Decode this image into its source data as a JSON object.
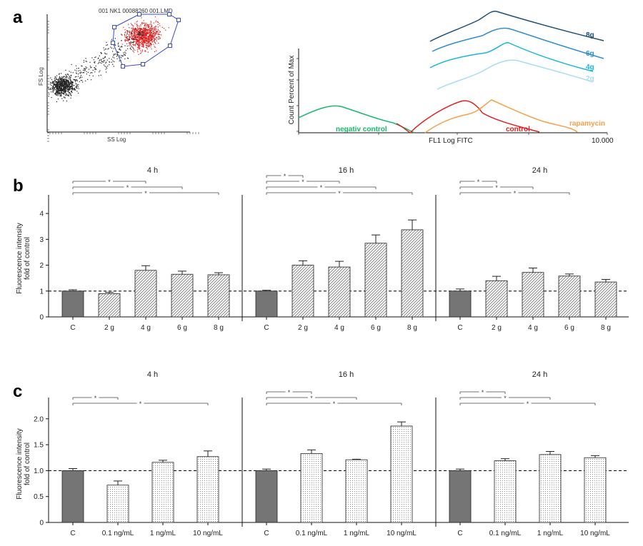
{
  "panel_labels": {
    "a": "a",
    "b": "b",
    "c": "c"
  },
  "chart_data": [
    {
      "id": "a1",
      "type": "scatter",
      "title": "001 NK1 00088260 001.LMD",
      "xlabel": "SS Log",
      "ylabel": "FS Log",
      "gate_label": "A1",
      "colors": {
        "gated": "#e02020",
        "ungated": "#222222",
        "gate": "#3a49d0"
      }
    },
    {
      "id": "a2",
      "type": "line",
      "xlabel": "FL1 Log FITC",
      "ylabel": "Count Percent of Max",
      "x_max_label": "10.000",
      "series": [
        {
          "name": "negativ control",
          "color": "#19b86a"
        },
        {
          "name": "control",
          "color": "#e02020"
        },
        {
          "name": "rapamycin",
          "color": "#f5a04a"
        },
        {
          "name": "2g",
          "color": "#a8dcef"
        },
        {
          "name": "4g",
          "color": "#18b6dc"
        },
        {
          "name": "6g",
          "color": "#2d8fd0"
        },
        {
          "name": "8g",
          "color": "#1e4f7a"
        }
      ]
    },
    {
      "id": "b",
      "type": "bar",
      "ylabel_lines": [
        "Fluorescence intensity",
        "fold of control"
      ],
      "ylim": [
        0,
        4.5
      ],
      "yticks": [
        "0",
        "1",
        "2",
        "3",
        "4"
      ],
      "categories": [
        "C",
        "2 g",
        "4 g",
        "6 g",
        "8 g"
      ],
      "star": "*",
      "groups": [
        {
          "name": "4 h",
          "values": [
            1.0,
            0.9,
            1.8,
            1.65,
            1.63
          ],
          "errors": [
            0.05,
            0.05,
            0.18,
            0.12,
            0.08
          ],
          "significance": [
            [
              0,
              2
            ],
            [
              0,
              3
            ],
            [
              0,
              4
            ]
          ]
        },
        {
          "name": "16 h",
          "values": [
            1.0,
            2.0,
            1.93,
            2.85,
            3.37
          ],
          "errors": [
            0.03,
            0.17,
            0.22,
            0.32,
            0.38
          ],
          "significance": [
            [
              0,
              1
            ],
            [
              0,
              2
            ],
            [
              0,
              3
            ],
            [
              0,
              4
            ]
          ]
        },
        {
          "name": "24 h",
          "values": [
            1.0,
            1.4,
            1.72,
            1.58,
            1.35
          ],
          "errors": [
            0.08,
            0.17,
            0.17,
            0.08,
            0.1
          ],
          "significance": [
            [
              0,
              1
            ],
            [
              0,
              2
            ],
            [
              0,
              3
            ]
          ]
        }
      ]
    },
    {
      "id": "c",
      "type": "bar",
      "ylabel_lines": [
        "Fluorescence intensity",
        "fold of control"
      ],
      "ylim": [
        0,
        2.3
      ],
      "yticks": [
        "0",
        "0.5",
        "1.0",
        "1.5",
        "2.0"
      ],
      "categories": [
        "C",
        "0.1 ng/mL",
        "1 ng/mL",
        "10 ng/mL"
      ],
      "star": "*",
      "groups": [
        {
          "name": "4 h",
          "values": [
            1.0,
            0.72,
            1.16,
            1.27
          ],
          "errors": [
            0.04,
            0.08,
            0.04,
            0.11
          ],
          "significance": [
            [
              0,
              1
            ],
            [
              0,
              3
            ]
          ]
        },
        {
          "name": "16 h",
          "values": [
            1.0,
            1.33,
            1.21,
            1.86
          ],
          "errors": [
            0.03,
            0.07,
            0.01,
            0.08
          ],
          "significance": [
            [
              0,
              1
            ],
            [
              0,
              2
            ],
            [
              0,
              3
            ]
          ]
        },
        {
          "name": "24 h",
          "values": [
            1.0,
            1.19,
            1.31,
            1.25
          ],
          "errors": [
            0.03,
            0.04,
            0.06,
            0.04
          ],
          "significance": [
            [
              0,
              1
            ],
            [
              0,
              2
            ],
            [
              0,
              3
            ]
          ]
        }
      ]
    }
  ]
}
